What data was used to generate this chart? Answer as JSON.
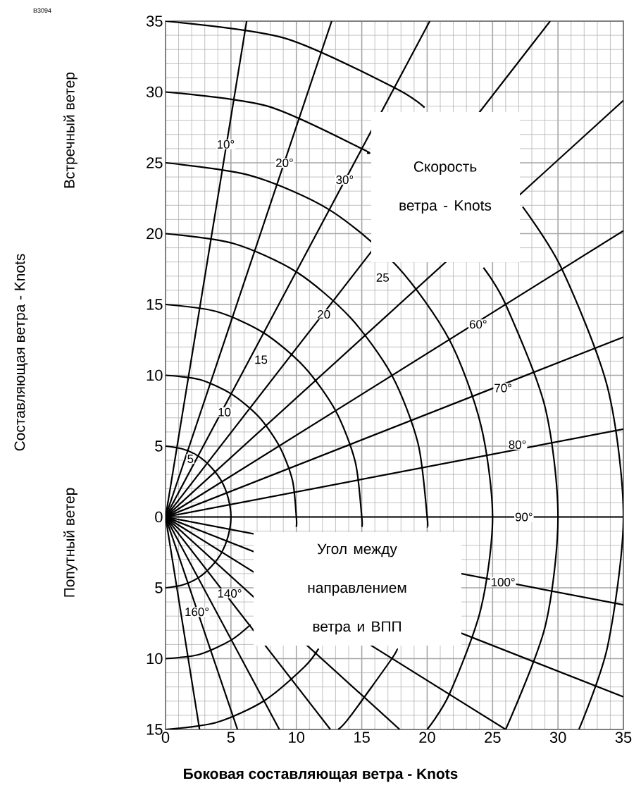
{
  "chart_data": {
    "type": "line",
    "xlabel": "**Боковая составляющая ветра - Knots**",
    "xlim": [
      0,
      35
    ],
    "ylim": [
      -15,
      35
    ],
    "xticks": [
      0,
      5,
      10,
      15,
      20,
      25,
      30,
      35
    ],
    "yticks": [
      {
        "value": -15,
        "label": "15"
      },
      {
        "value": -10,
        "label": "10"
      },
      {
        "value": -5,
        "label": "5"
      },
      0,
      5,
      10,
      15,
      20,
      25,
      30,
      35
    ],
    "grid": true,
    "series": [
      {
        "color": "#000000",
        "x": [
          0,
          1.3,
          2.5,
          3.5,
          4.3,
          4.8,
          5,
          4.8,
          4.3,
          3.5,
          2.5,
          1.3,
          0
        ],
        "values": [
          5,
          4.8,
          4.3,
          3.5,
          2.5,
          1.3,
          0,
          -1.3,
          -2.5,
          -3.5,
          -4.3,
          -4.8,
          -5
        ]
      },
      {
        "color": "#000000",
        "x": [
          0,
          2.6,
          5,
          7.1,
          8.7,
          9.7,
          10,
          10,
          8.7,
          6.5,
          5,
          2.6,
          0
        ],
        "values": [
          10,
          9.7,
          8.7,
          7.1,
          5,
          2.6,
          0,
          -0.7,
          null,
          -7.6,
          -8.7,
          -9.7,
          -10
        ]
      },
      {
        "color": "#000000",
        "x": [
          0,
          3.9,
          7.5,
          10.6,
          13,
          14.5,
          15,
          15,
          13,
          11.7,
          10.6,
          7.5,
          3.9,
          0
        ],
        "values": [
          15,
          14.5,
          13,
          10.6,
          7.5,
          3.9,
          0,
          -0.7,
          null,
          -9.3,
          -10.6,
          -13,
          -14.5,
          -15
        ]
      },
      {
        "color": "#000000",
        "x": [
          0,
          5.2,
          10,
          14.1,
          17.3,
          19.3,
          20,
          20,
          19.3,
          17.7,
          17.3,
          14.1,
          13.2
        ],
        "values": [
          20,
          19.3,
          17.3,
          14.1,
          10,
          5.2,
          0,
          -0.7,
          null,
          -9.3,
          -10,
          -14.1,
          -15
        ]
      },
      {
        "color": "#000000",
        "x": [
          0,
          6.5,
          12.5,
          17.7,
          21.7,
          24.1,
          25,
          24.1,
          21.7,
          20
        ],
        "values": [
          25,
          24.1,
          21.7,
          17.7,
          12.5,
          6.5,
          0,
          -6.5,
          -12.5,
          -15
        ]
      },
      {
        "color": "#000000",
        "x": [
          0,
          7.8,
          15,
          15.4,
          21.2,
          24.3,
          26,
          29,
          30,
          29,
          26
        ],
        "values": [
          30,
          29,
          26,
          25.7,
          null,
          17.6,
          15,
          7.8,
          0,
          -7.8,
          -15
        ]
      },
      {
        "color": "#000000",
        "x": [
          0,
          9.1,
          17.5,
          19.8,
          24.7,
          27.3,
          30.3,
          33.8,
          35,
          33.8,
          31.6
        ],
        "values": [
          35,
          33.8,
          30.3,
          28.9,
          null,
          21.9,
          17.5,
          9.1,
          0,
          -9.1,
          -15
        ]
      },
      {
        "color": "#000000",
        "x": [
          0,
          6.2
        ],
        "values": [
          0,
          35
        ]
      },
      {
        "color": "#000000",
        "x": [
          0,
          12.7
        ],
        "values": [
          0,
          35
        ]
      },
      {
        "color": "#000000",
        "x": [
          0,
          20.2
        ],
        "values": [
          0,
          35
        ]
      },
      {
        "color": "#000000",
        "x": [
          0,
          29.4
        ],
        "values": [
          0,
          35
        ]
      },
      {
        "color": "#000000",
        "x": [
          0,
          35
        ],
        "values": [
          0,
          29.4
        ]
      },
      {
        "color": "#000000",
        "x": [
          0,
          35
        ],
        "values": [
          0,
          20.2
        ]
      },
      {
        "color": "#000000",
        "x": [
          0,
          35
        ],
        "values": [
          0,
          12.7
        ]
      },
      {
        "color": "#000000",
        "x": [
          0,
          35
        ],
        "values": [
          0,
          6.2
        ]
      },
      {
        "color": "#000000",
        "x": [
          0,
          35
        ],
        "values": [
          0,
          0
        ]
      },
      {
        "color": "#000000",
        "x": [
          0,
          35
        ],
        "values": [
          0,
          -6.2
        ]
      },
      {
        "color": "#000000",
        "x": [
          0,
          35
        ],
        "values": [
          0,
          -12.7
        ]
      },
      {
        "color": "#000000",
        "x": [
          0,
          26
        ],
        "values": [
          0,
          -15
        ]
      },
      {
        "color": "#000000",
        "x": [
          0,
          17.9
        ],
        "values": [
          0,
          -15
        ]
      },
      {
        "color": "#000000",
        "x": [
          0,
          12.6
        ],
        "values": [
          0,
          -15
        ]
      },
      {
        "color": "#000000",
        "x": [
          0,
          8.7
        ],
        "values": [
          0,
          -15
        ]
      },
      {
        "color": "#000000",
        "x": [
          0,
          5.5
        ],
        "values": [
          0,
          -15
        ]
      },
      {
        "color": "#000000",
        "x": [
          0,
          2.6
        ],
        "values": [
          0,
          -15
        ]
      }
    ],
    "annotations": [
      "B3094",
      "Встречный ветер",
      "Попутный ветер",
      "Скорость ветра - Knots",
      "Угол между направлением ветра и ВПП",
      "Составляющая ветра - Knots",
      {
        "text": "5",
        "x": 1.9,
        "y": 4.1
      },
      {
        "text": "10",
        "x": 4.5,
        "y": 7.4
      },
      {
        "text": "15",
        "x": 7.3,
        "y": 11.1
      },
      {
        "text": "20",
        "x": 12.1,
        "y": 14.3
      },
      {
        "text": "25",
        "x": 16.6,
        "y": 16.9
      },
      {
        "text": "10°",
        "x": 4.6,
        "y": 26.3
      },
      {
        "text": "20°",
        "x": 9.1,
        "y": 25
      },
      {
        "text": "30°",
        "x": 13.7,
        "y": 23.8
      },
      {
        "text": "60°",
        "x": 23.9,
        "y": 13.6
      },
      {
        "text": "70°",
        "x": 25.8,
        "y": 9.1
      },
      {
        "text": "80°",
        "x": 26.9,
        "y": 5.1
      },
      {
        "text": "90°",
        "x": 27.4,
        "y": 0
      },
      {
        "text": "100°",
        "x": 25.8,
        "y": -4.6
      },
      {
        "text": "140°",
        "x": 4.9,
        "y": -5.4
      },
      {
        "text": "160°",
        "x": 2.4,
        "y": -6.7
      }
    ]
  }
}
